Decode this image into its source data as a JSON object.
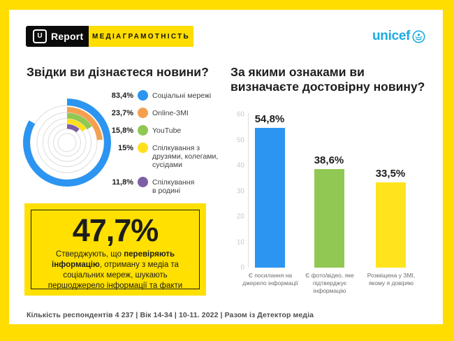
{
  "header": {
    "ureport_u": "U",
    "ureport_label": "Report",
    "banner": "МЕДІАГРАМОТНІСТЬ",
    "unicef": "unicef"
  },
  "chart_data": [
    {
      "type": "radial-bar",
      "title": "Звідки ви дізнаєтеся новини?",
      "max": 100,
      "legend_position": "right",
      "items": [
        {
          "label": "Соціальні мережі",
          "value": 83.4,
          "value_label": "83,4%",
          "color": "#2B95F1"
        },
        {
          "label": "Online-ЗМІ",
          "value": 23.7,
          "value_label": "23,7%",
          "color": "#F5A04F"
        },
        {
          "label": "YouTube",
          "value": 15.8,
          "value_label": "15,8%",
          "color": "#90C853"
        },
        {
          "label": "Спілкування з\nдрузями, колегами,\nсусідами",
          "value": 15,
          "value_label": "15%",
          "color": "#FFE01A"
        },
        {
          "label": "Спілкування\nв родині",
          "value": 11.8,
          "value_label": "11,8%",
          "color": "#7D5FA5"
        }
      ]
    },
    {
      "type": "bar",
      "title": "За якими ознаками ви\nвизначаєте достовірну новину?",
      "categories": [
        "Є посилання на\nджерело інформації",
        "Є фото/відео, яке\nпідтверджує\nінформацію",
        "Розміщена у ЗМІ,\nякому я довіряю"
      ],
      "values": [
        54.8,
        38.6,
        33.5
      ],
      "value_labels": [
        "54,8%",
        "38,6%",
        "33,5%"
      ],
      "colors": [
        "#2B95F1",
        "#90C853",
        "#FFE31C"
      ],
      "ylabel": "",
      "xlabel": "",
      "ylim": [
        0,
        60
      ],
      "ytick_step": 10,
      "grid": false
    }
  ],
  "stat_box": {
    "value": "47,7%",
    "text_parts": [
      {
        "text": "Стверджують, що ",
        "bold": false
      },
      {
        "text": "перевіряють інформацію",
        "bold": true
      },
      {
        "text": ", отриману з медіа та соціальних мереж, шукають першоджерело інформації та факти",
        "bold": false
      }
    ]
  },
  "footer": {
    "text": "Кількість респондентів 4 237 |  Вік 14-34 | 10-11. 2022 | Разом із Детектор медіа"
  },
  "colors": {
    "page_bg": "#FFDD00",
    "card_bg": "#FFFFFF",
    "unicef_blue": "#1CABE2",
    "title_text": "#1D1D1B"
  }
}
